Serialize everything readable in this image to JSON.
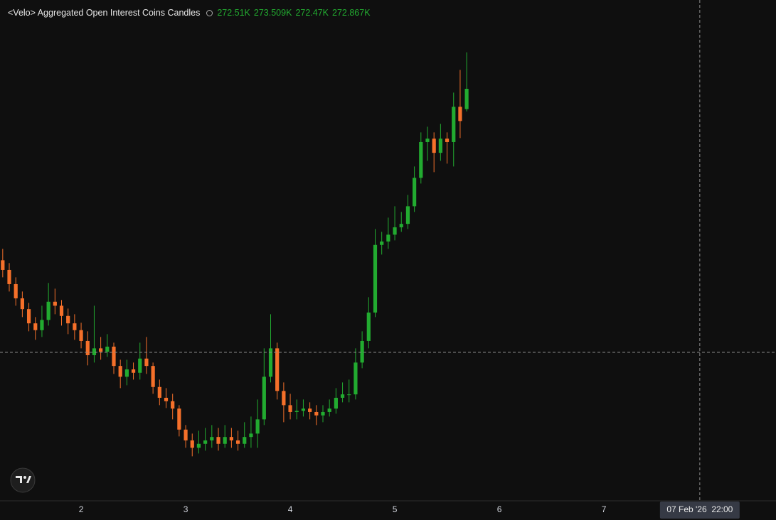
{
  "chart_data": {
    "type": "candlestick",
    "title": "<Velo> Aggregated Open Interest Coins Candles",
    "legend_values": [
      "272.51K",
      "273.509K",
      "272.47K",
      "272.867K"
    ],
    "x": [
      1.25,
      1.3125,
      1.375,
      1.4375,
      1.5,
      1.5625,
      1.625,
      1.6875,
      1.75,
      1.8125,
      1.875,
      1.9375,
      2,
      2.0625,
      2.125,
      2.1875,
      2.25,
      2.3125,
      2.375,
      2.4375,
      2.5,
      2.5625,
      2.625,
      2.6875,
      2.75,
      2.8125,
      2.875,
      2.9375,
      3,
      3.0625,
      3.125,
      3.1875,
      3.25,
      3.3125,
      3.375,
      3.4375,
      3.5,
      3.5625,
      3.625,
      3.6875,
      3.75,
      3.8125,
      3.875,
      3.9375,
      4,
      4.0625,
      4.125,
      4.1875,
      4.25,
      4.3125,
      4.375,
      4.4375,
      4.5,
      4.5625,
      4.625,
      4.6875,
      4.75,
      4.8125,
      4.875,
      4.9375,
      5,
      5.0625,
      5.125,
      5.1875,
      5.25,
      5.3125,
      5.375,
      5.4375,
      5.5,
      5.5625,
      5.625,
      5.6875
    ],
    "open": [
      269.85,
      269.68,
      269.43,
      269.18,
      268.99,
      268.74,
      268.62,
      268.8,
      269.12,
      269.05,
      268.87,
      268.74,
      268.62,
      268.43,
      268.18,
      268.3,
      268.24,
      268.33,
      267.99,
      267.8,
      267.93,
      267.87,
      268.12,
      267.99,
      267.62,
      267.43,
      267.37,
      267.24,
      266.87,
      266.68,
      266.55,
      266.62,
      266.68,
      266.74,
      266.62,
      266.74,
      266.68,
      266.62,
      266.74,
      266.8,
      267.05,
      267.8,
      268.3,
      267.55,
      267.3,
      267.18,
      267.2,
      267.24,
      267.18,
      267.12,
      267.18,
      267.24,
      267.43,
      267.49,
      267.49,
      268.05,
      268.43,
      268.93,
      270.12,
      270.18,
      270.3,
      270.43,
      270.49,
      270.8,
      271.3,
      271.93,
      271.99,
      271.74,
      271.99,
      271.93,
      272.55,
      272.51
    ],
    "high": [
      270.05,
      269.8,
      269.55,
      269.3,
      269.1,
      268.85,
      269.05,
      269.45,
      269.35,
      269.15,
      269.0,
      268.9,
      268.75,
      268.6,
      269.05,
      268.5,
      268.55,
      268.4,
      268.1,
      268.1,
      268.05,
      268.4,
      268.5,
      268.05,
      267.75,
      267.6,
      267.5,
      267.3,
      266.95,
      266.8,
      266.85,
      266.9,
      266.95,
      266.9,
      266.95,
      266.9,
      266.85,
      267.0,
      267.1,
      267.4,
      268.3,
      268.9,
      268.4,
      267.7,
      267.5,
      267.4,
      267.4,
      267.35,
      267.3,
      267.3,
      267.4,
      267.6,
      267.7,
      267.75,
      268.3,
      268.6,
      269.2,
      270.4,
      270.35,
      270.6,
      270.8,
      270.7,
      271.0,
      271.5,
      272.1,
      272.2,
      272.1,
      272.25,
      272.1,
      272.8,
      273.2,
      273.509
    ],
    "low": [
      269.55,
      269.3,
      269.05,
      268.85,
      268.6,
      268.45,
      268.5,
      268.7,
      268.9,
      268.7,
      268.55,
      268.45,
      268.3,
      268.0,
      268.05,
      268.1,
      268.15,
      267.85,
      267.6,
      267.65,
      267.75,
      267.75,
      267.85,
      267.5,
      267.3,
      267.25,
      267.05,
      266.75,
      266.55,
      266.4,
      266.45,
      266.5,
      266.55,
      266.5,
      266.55,
      266.55,
      266.5,
      266.55,
      266.55,
      266.55,
      266.95,
      267.7,
      267.4,
      267.0,
      267.05,
      267.05,
      267.1,
      267.05,
      266.95,
      267.0,
      267.1,
      267.15,
      267.35,
      267.35,
      267.4,
      267.95,
      268.3,
      268.85,
      269.95,
      270.05,
      270.2,
      270.35,
      270.4,
      270.7,
      271.2,
      271.6,
      271.4,
      271.6,
      271.55,
      271.5,
      272.0,
      272.47
    ],
    "close": [
      269.68,
      269.43,
      269.18,
      268.99,
      268.74,
      268.62,
      268.8,
      269.12,
      269.05,
      268.87,
      268.74,
      268.62,
      268.43,
      268.18,
      268.3,
      268.24,
      268.33,
      267.99,
      267.8,
      267.93,
      267.87,
      268.12,
      267.99,
      267.62,
      267.43,
      267.37,
      267.24,
      266.87,
      266.68,
      266.55,
      266.62,
      266.68,
      266.74,
      266.62,
      266.74,
      266.68,
      266.62,
      266.74,
      266.8,
      267.05,
      267.8,
      268.3,
      267.55,
      267.3,
      267.18,
      267.2,
      267.24,
      267.18,
      267.12,
      267.18,
      267.24,
      267.43,
      267.49,
      267.49,
      268.05,
      268.43,
      268.93,
      270.12,
      270.18,
      270.3,
      270.43,
      270.49,
      270.8,
      271.3,
      271.93,
      271.99,
      271.74,
      271.99,
      271.93,
      272.55,
      272.3,
      272.867
    ],
    "up_color": "#22ab30",
    "down_color": "#f5702a",
    "xlim": [
      1.224,
      8.646
    ],
    "xticks": [
      2,
      3,
      4,
      5,
      6,
      7
    ],
    "ylim": [
      265.617,
      274.4295
    ],
    "crosshair": {
      "x": 7.917,
      "y": 268.23,
      "label": "07 Feb '26  22:00"
    }
  }
}
